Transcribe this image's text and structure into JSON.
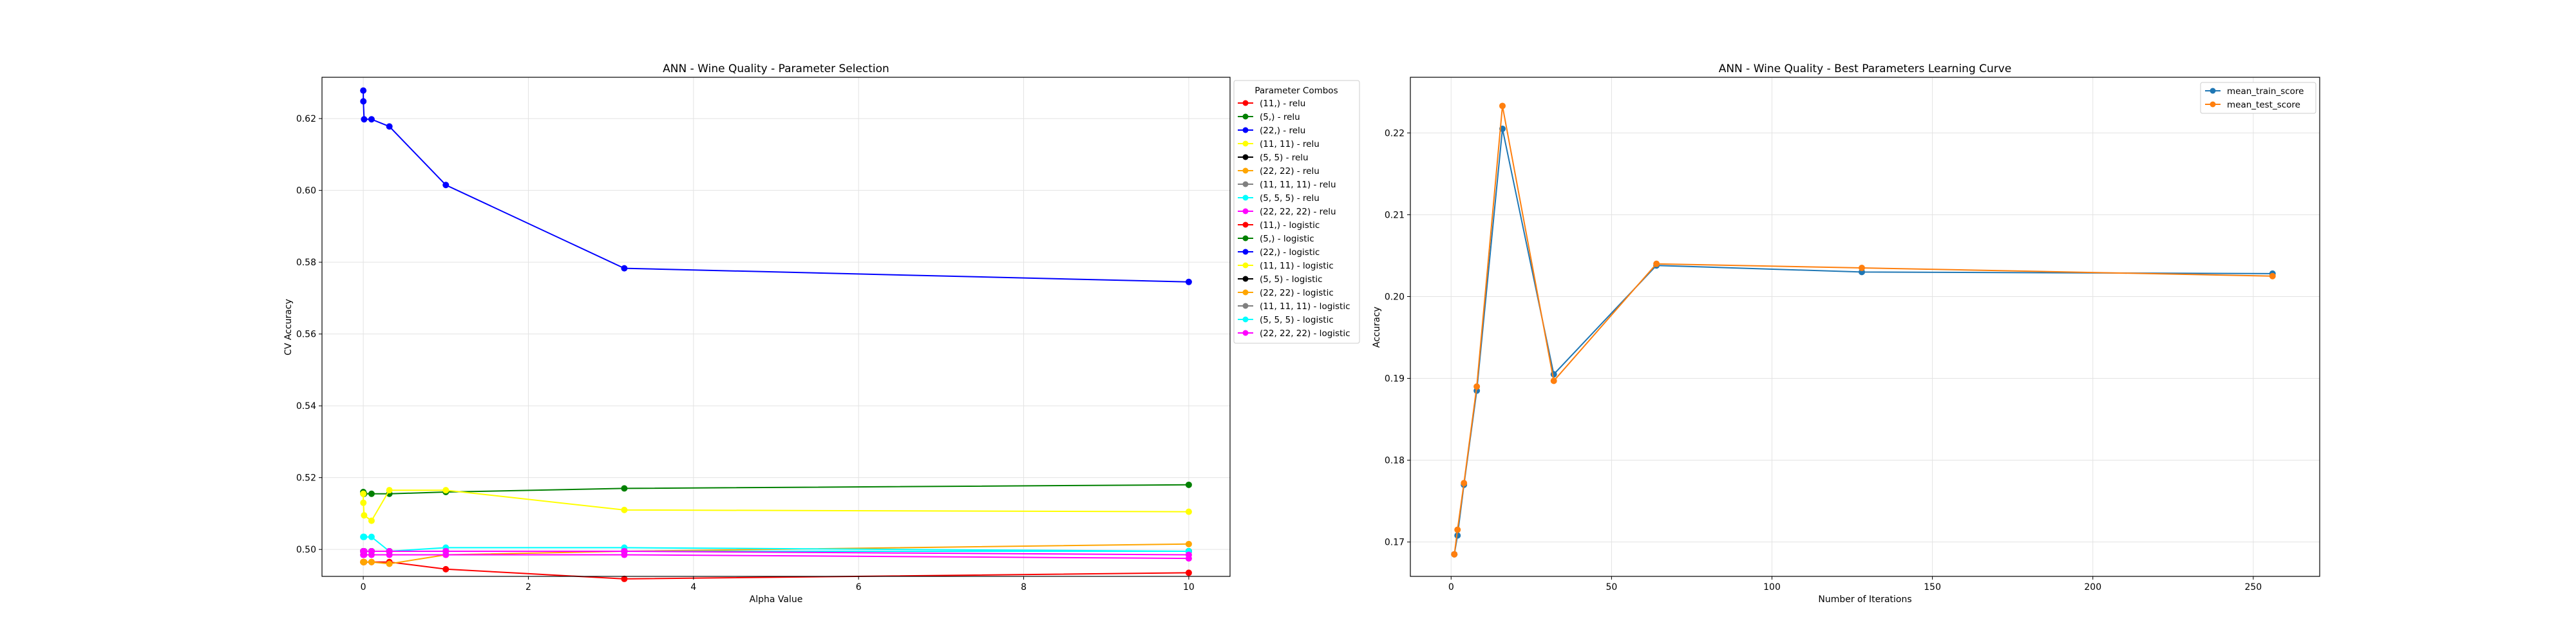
{
  "chart_data": [
    {
      "type": "line",
      "title": "ANN - Wine Quality - Parameter Selection",
      "xlabel": "Alpha Value",
      "ylabel": "CV Accuracy",
      "xlim": [
        -0.5,
        10.5
      ],
      "ylim": [
        0.4925,
        0.6315
      ],
      "xticks": [
        0,
        2,
        4,
        6,
        8,
        10
      ],
      "yticks": [
        0.5,
        0.52,
        0.54,
        0.56,
        0.58,
        0.6,
        0.62
      ],
      "ytick_labels": [
        "0.50",
        "0.52",
        "0.54",
        "0.56",
        "0.58",
        "0.60",
        "0.62"
      ],
      "grid": true,
      "legend_title": "Parameter Combos",
      "legend_position": "outside-right",
      "x": [
        0.0001,
        0.001,
        0.01,
        0.1,
        0.3162,
        1,
        3.162,
        10
      ],
      "series": [
        {
          "name": "(11,) - relu",
          "color": "#ff0000",
          "values": [
            0.4965,
            0.4965,
            0.4965,
            0.4965,
            0.4965,
            0.4945,
            0.4918,
            0.4935
          ]
        },
        {
          "name": "(5,) - relu",
          "color": "#008000",
          "values": [
            0.516,
            0.5155,
            0.5155,
            0.5155,
            0.5155,
            0.516,
            0.517,
            0.518
          ]
        },
        {
          "name": "(22,) - relu",
          "color": "#0000ff",
          "values": [
            0.6278,
            0.6248,
            0.6198,
            0.6198,
            0.6178,
            0.6015,
            0.5783,
            0.5745
          ]
        },
        {
          "name": "(11, 11) - relu",
          "color": "#ffff00",
          "values": [
            0.5155,
            0.513,
            0.5095,
            0.508,
            0.5165,
            0.5165,
            0.511,
            0.5105
          ]
        },
        {
          "name": "(5, 5) - relu",
          "color": "#000000",
          "values": [
            0.4995,
            0.4995,
            0.4995,
            0.4995,
            0.4995,
            0.4995,
            0.4995,
            0.4995
          ]
        },
        {
          "name": "(22, 22) - relu",
          "color": "#ffa500",
          "values": [
            0.4965,
            0.4965,
            0.4965,
            0.4965,
            0.496,
            0.4985,
            0.4995,
            0.5015
          ]
        },
        {
          "name": "(11, 11, 11) - relu",
          "color": "#808080",
          "values": [
            0.4995,
            0.4995,
            0.4995,
            0.4995,
            0.4995,
            0.4995,
            0.4995,
            0.4995
          ]
        },
        {
          "name": "(5, 5, 5) - relu",
          "color": "#00ffff",
          "values": [
            0.5035,
            0.5035,
            0.5035,
            0.5035,
            0.4995,
            0.5005,
            0.5005,
            0.4995
          ]
        },
        {
          "name": "(22, 22, 22) - relu",
          "color": "#ff00ff",
          "values": [
            0.4985,
            0.4985,
            0.4985,
            0.4985,
            0.4985,
            0.4985,
            0.4985,
            0.4975
          ]
        },
        {
          "name": "(11,) - logistic",
          "color": "#ff0000",
          "values": [
            0.4995,
            0.4995,
            0.4995,
            0.4995,
            0.4995,
            0.4995,
            0.4995,
            0.4995
          ]
        },
        {
          "name": "(5,) - logistic",
          "color": "#008000",
          "values": [
            0.4995,
            0.4995,
            0.4995,
            0.4995,
            0.4995,
            0.4995,
            0.4995,
            0.4995
          ]
        },
        {
          "name": "(22,) - logistic",
          "color": "#0000ff",
          "values": [
            0.4995,
            0.4995,
            0.4995,
            0.4995,
            0.4995,
            0.4995,
            0.4995,
            0.4995
          ]
        },
        {
          "name": "(11, 11) - logistic",
          "color": "#ffff00",
          "values": [
            0.4995,
            0.4995,
            0.4995,
            0.4995,
            0.4995,
            0.4995,
            0.4995,
            0.4995
          ]
        },
        {
          "name": "(5, 5) - logistic",
          "color": "#000000",
          "values": [
            0.4995,
            0.4995,
            0.4995,
            0.4995,
            0.4995,
            0.4995,
            0.4995,
            0.4995
          ]
        },
        {
          "name": "(22, 22) - logistic",
          "color": "#ffa500",
          "values": [
            0.4995,
            0.4995,
            0.4995,
            0.4995,
            0.4995,
            0.4995,
            0.4995,
            0.4995
          ]
        },
        {
          "name": "(11, 11, 11) - logistic",
          "color": "#808080",
          "values": [
            0.4995,
            0.4995,
            0.4995,
            0.4995,
            0.4995,
            0.4995,
            0.4995,
            0.4995
          ]
        },
        {
          "name": "(5, 5, 5) - logistic",
          "color": "#00ffff",
          "values": [
            0.4995,
            0.4995,
            0.4995,
            0.4995,
            0.4995,
            0.4995,
            0.4995,
            0.4995
          ]
        },
        {
          "name": "(22, 22, 22) - logistic",
          "color": "#ff00ff",
          "values": [
            0.4995,
            0.4995,
            0.4995,
            0.4995,
            0.4995,
            0.4995,
            0.4995,
            0.4985
          ]
        }
      ]
    },
    {
      "type": "line",
      "title": "ANN - Wine Quality - Best Parameters Learning Curve",
      "xlabel": "Number of Iterations",
      "ylabel": "Accuracy",
      "xlim": [
        -12.7,
        270.7
      ],
      "ylim": [
        0.1658,
        0.2268
      ],
      "xticks": [
        0,
        50,
        100,
        150,
        200,
        250
      ],
      "yticks": [
        0.17,
        0.18,
        0.19,
        0.2,
        0.21,
        0.22
      ],
      "ytick_labels": [
        "0.17",
        "0.18",
        "0.19",
        "0.20",
        "0.21",
        "0.22"
      ],
      "grid": true,
      "legend_position": "upper right",
      "x": [
        1,
        2,
        4,
        8,
        16,
        32,
        64,
        128,
        256
      ],
      "series": [
        {
          "name": "mean_train_score",
          "color": "#1f77b4",
          "values": [
            0.1685,
            0.1708,
            0.177,
            0.1885,
            0.2205,
            0.1905,
            0.2038,
            0.203,
            0.2028
          ]
        },
        {
          "name": "mean_test_score",
          "color": "#ff7f0e",
          "values": [
            0.1685,
            0.1715,
            0.1772,
            0.189,
            0.2233,
            0.1897,
            0.204,
            0.2035,
            0.2025
          ]
        }
      ]
    }
  ]
}
